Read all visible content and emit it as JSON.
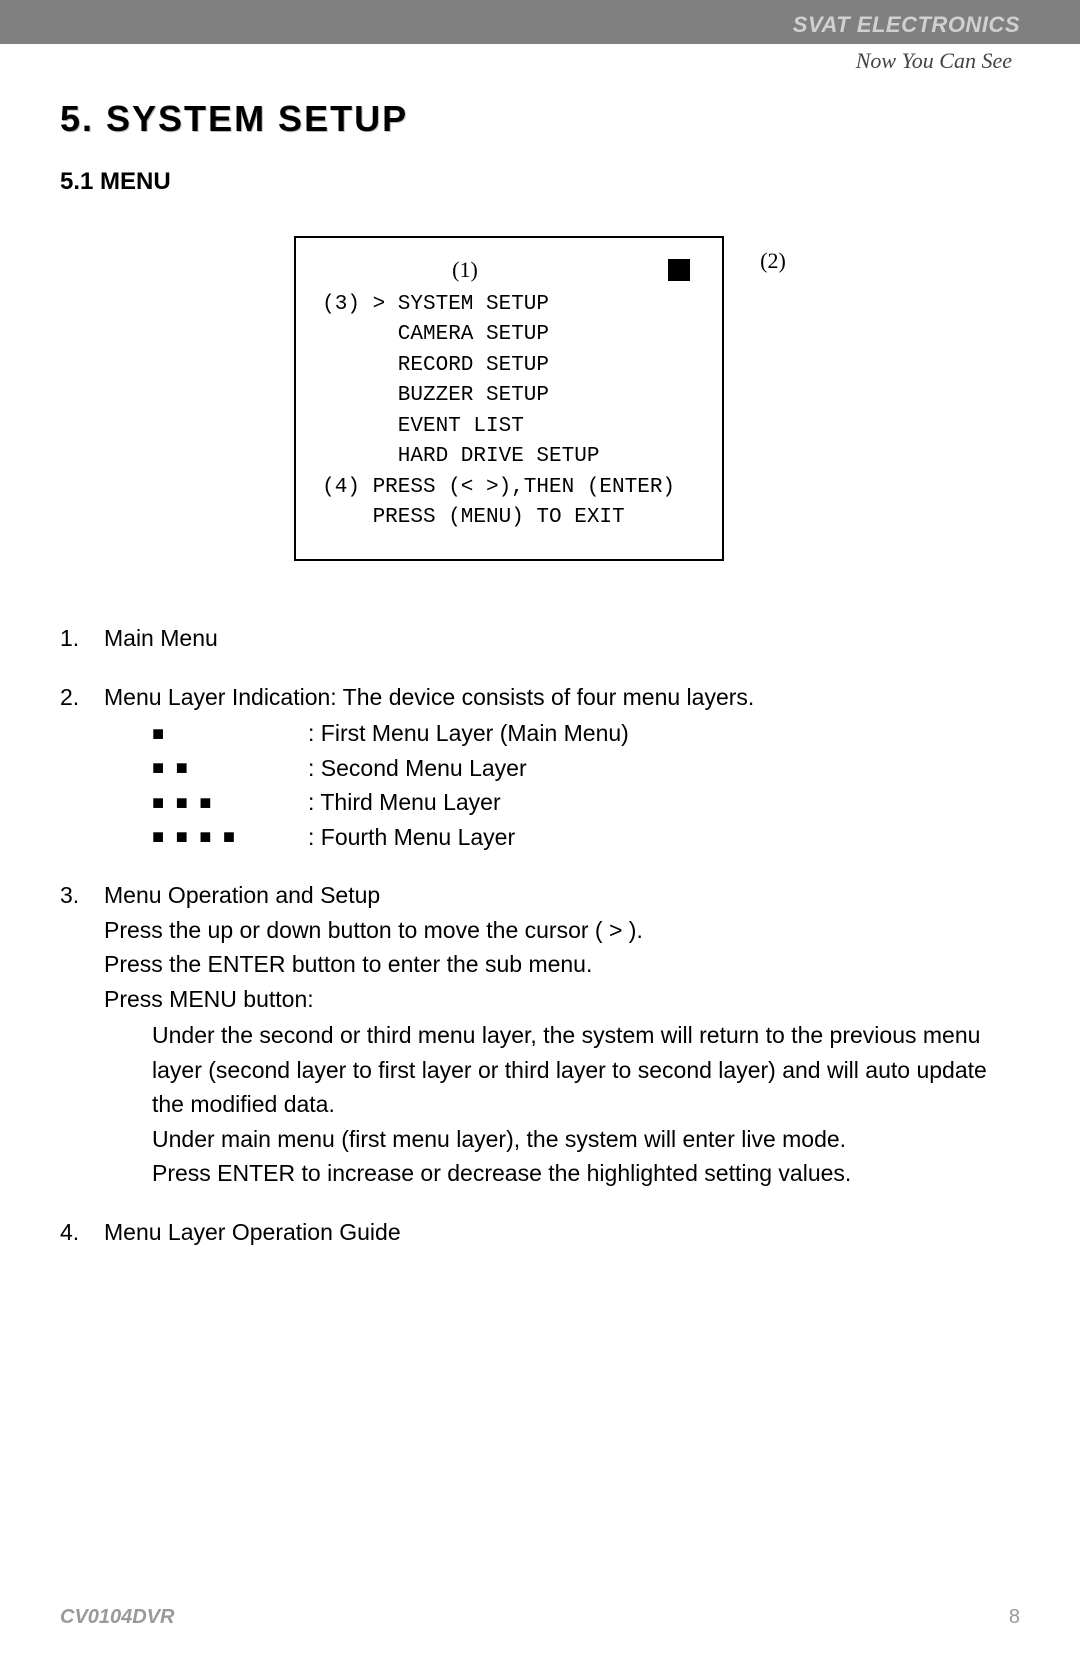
{
  "header": {
    "brand": "SVAT ELECTRONICS",
    "tagline": "Now You Can See"
  },
  "section": {
    "title": "5. SYSTEM SETUP",
    "subtitle": "5.1 MENU"
  },
  "menu_box": {
    "label_1": "(1)",
    "label_2": "(2)",
    "lines": "(3) > SYSTEM SETUP\n      CAMERA SETUP\n      RECORD SETUP\n      BUZZER SETUP\n      EVENT LIST\n      HARD DRIVE SETUP\n(4) PRESS (< >),THEN (ENTER)\n    PRESS (MENU) TO EXIT"
  },
  "items": {
    "n1": "1.",
    "t1": "Main Menu",
    "n2": "2.",
    "t2": "Menu Layer Indication: The device consists of four menu layers.",
    "layers": [
      {
        "sq": "■",
        "label": ": First Menu Layer (Main Menu)"
      },
      {
        "sq": "■ ■",
        "label": ": Second Menu Layer"
      },
      {
        "sq": "■ ■ ■",
        "label": ": Third Menu Layer"
      },
      {
        "sq": "■ ■ ■ ■",
        "label": ": Fourth Menu Layer"
      }
    ],
    "n3": "3.",
    "t3": "Menu Operation and Setup",
    "t3_l1": "Press the up or down button to move the cursor ( > ).",
    "t3_l2": "Press the ENTER button to enter the sub menu.",
    "t3_l3": "Press MENU button:",
    "t3_p1": "Under the second or third menu layer, the system will return to the previous menu layer (second layer to first layer or third layer to second layer) and will auto update the modified data.",
    "t3_p2": "Under main menu (first menu layer), the system will enter live mode.",
    "t3_p3": "Press ENTER to increase or decrease the highlighted setting values.",
    "n4": "4.",
    "t4": "Menu Layer Operation Guide"
  },
  "footer": {
    "model": "CV0104DVR",
    "page": "8"
  },
  "colors": {
    "top_bar": "#808080",
    "brand_text": "#d0d0d0",
    "text": "#000000",
    "footer_text": "#9a9a9a",
    "background": "#ffffff"
  }
}
